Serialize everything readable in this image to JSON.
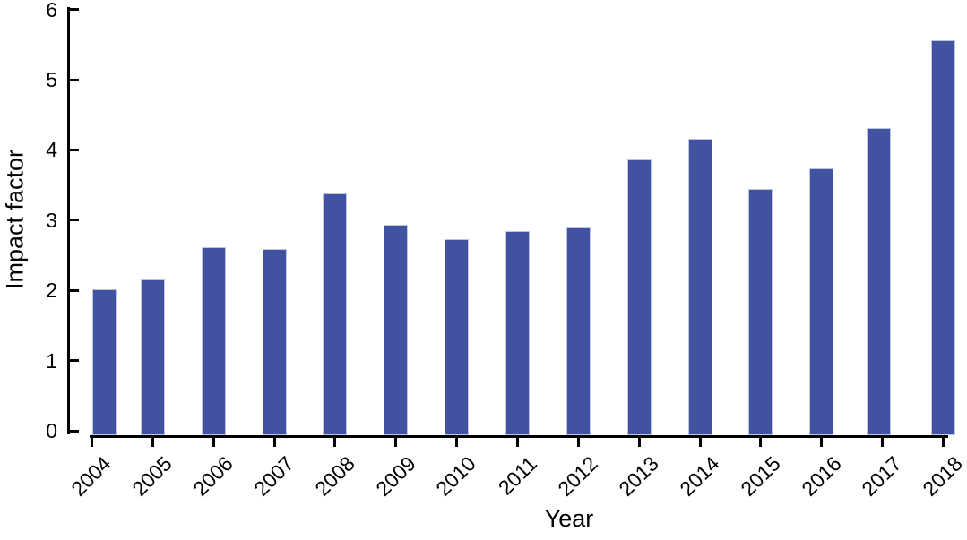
{
  "chart_data": {
    "type": "bar",
    "title": "",
    "xlabel": "Year",
    "ylabel": "Impact factor",
    "categories": [
      "2004",
      "2005",
      "2006",
      "2007",
      "2008",
      "2009",
      "2010",
      "2011",
      "2012",
      "2013",
      "2014",
      "2015",
      "2016",
      "2017",
      "2018"
    ],
    "values": [
      2.02,
      2.16,
      2.61,
      2.59,
      3.38,
      2.94,
      2.73,
      2.84,
      2.9,
      3.86,
      4.16,
      3.44,
      3.74,
      4.31,
      5.56
    ],
    "ylim": [
      0,
      6
    ],
    "yticks": [
      0,
      1,
      2,
      3,
      4,
      5,
      6
    ],
    "grid": false,
    "legend": false,
    "x_tick_label_rotation_deg": 45,
    "colors": {
      "bar_fill": "#4152a1",
      "bar_edge": "#bfc6e2",
      "axis": "#000000",
      "text": "#000000"
    }
  }
}
